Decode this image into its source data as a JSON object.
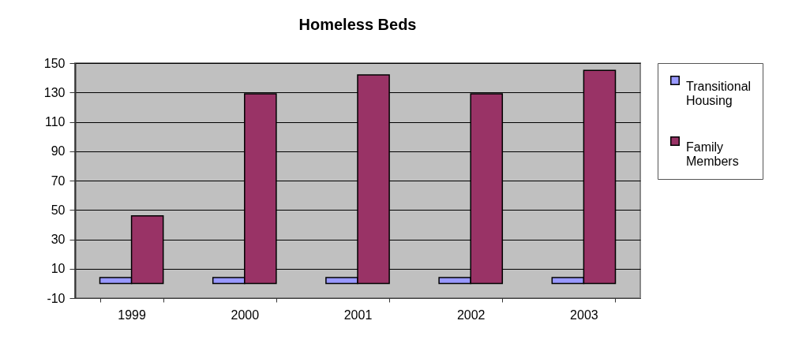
{
  "chart_data": {
    "type": "bar",
    "title": "Homeless Beds",
    "categories": [
      "1999",
      "2000",
      "2001",
      "2002",
      "2003"
    ],
    "series": [
      {
        "name": "Transitional Housing",
        "color": "#9999ff",
        "values": [
          4,
          4,
          4,
          4,
          4
        ]
      },
      {
        "name": "Family Members",
        "color": "#993366",
        "values": [
          46,
          129,
          142,
          129,
          145
        ]
      }
    ],
    "ylim": [
      -10,
      150
    ],
    "yticks": [
      -10,
      10,
      30,
      50,
      70,
      90,
      110,
      130,
      150
    ],
    "grid": "y",
    "legend": "right"
  }
}
